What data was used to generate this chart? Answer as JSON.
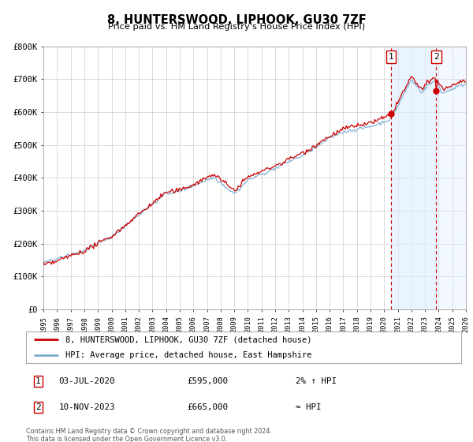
{
  "title": "8, HUNTERSWOOD, LIPHOOK, GU30 7ZF",
  "subtitle": "Price paid vs. HM Land Registry's House Price Index (HPI)",
  "red_label": "8, HUNTERSWOOD, LIPHOOK, GU30 7ZF (detached house)",
  "blue_label": "HPI: Average price, detached house, East Hampshire",
  "sale1_date": "03-JUL-2020",
  "sale1_price": "£595,000",
  "sale1_note": "2% ↑ HPI",
  "sale2_date": "10-NOV-2023",
  "sale2_price": "£665,000",
  "sale2_note": "≈ HPI",
  "footer": "Contains HM Land Registry data © Crown copyright and database right 2024.\nThis data is licensed under the Open Government Licence v3.0.",
  "ylim": [
    0,
    800000
  ],
  "yticks": [
    0,
    100000,
    200000,
    300000,
    400000,
    500000,
    600000,
    700000,
    800000
  ],
  "ytick_labels": [
    "£0",
    "£100K",
    "£200K",
    "£300K",
    "£400K",
    "£500K",
    "£600K",
    "£700K",
    "£800K"
  ],
  "x_start_year": 1995,
  "x_end_year": 2026,
  "sale1_year": 2020.5,
  "sale2_year": 2023.83,
  "red_color": "#cc0000",
  "blue_color": "#7aabcf",
  "bg_color": "#ffffff",
  "plot_bg_color": "#ffffff",
  "grid_color": "#cccccc",
  "shade_color": "#ddeeff",
  "hatch_color": "#c5d9e8",
  "sale1_dot_value": 595000,
  "sale2_dot_value": 665000
}
